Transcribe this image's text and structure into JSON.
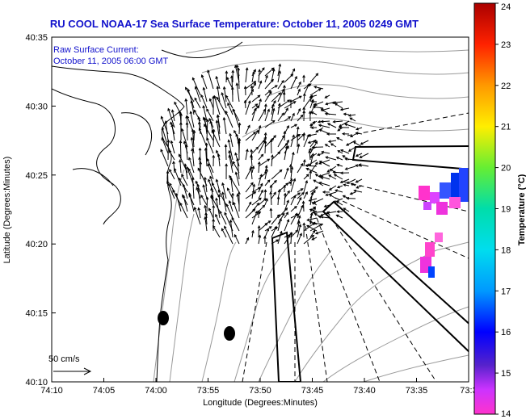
{
  "title": "RU COOL  NOAA-17  Sea Surface Temperature:  October 11, 2005 0249 GMT",
  "subtitle_1": "Raw Surface Current:",
  "subtitle_2": "October 11, 2005 06:00 GMT",
  "x_axis": {
    "label": "Longitude (Degrees:Minutes)",
    "ticks": [
      "74:10",
      "74:05",
      "74:00",
      "73:55",
      "73:50",
      "73:45",
      "73:40",
      "73:35",
      "73:3"
    ]
  },
  "y_axis": {
    "label": "Latitude (Degrees:Minutes)",
    "ticks": [
      "40:35",
      "40:30",
      "40:25",
      "40:20",
      "40:15",
      "40:10"
    ]
  },
  "scale_label": "50 cm/s",
  "colorbar": {
    "label": "Temperature (°C)",
    "ticks": [
      "24",
      "23",
      "22",
      "21",
      "20",
      "19",
      "18",
      "17",
      "16",
      "15",
      "14"
    ],
    "min": 14,
    "max": 24
  },
  "colors": {
    "title": "#1111cc",
    "vector": "#000000",
    "bathymetry": "#999999"
  },
  "map_layers": [
    "coastline",
    "bathymetry-contours",
    "current-vectors",
    "shipping-lanes",
    "sst-patches",
    "buoy-markers"
  ]
}
